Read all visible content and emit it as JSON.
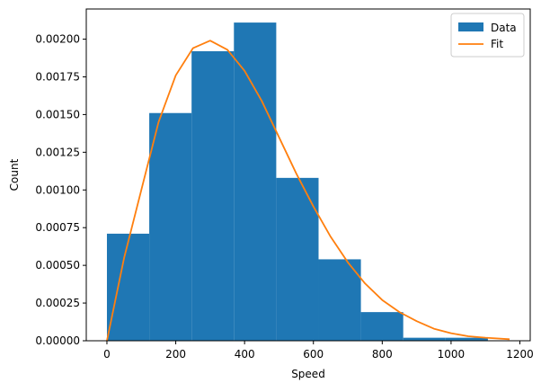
{
  "chart_data": {
    "type": "bar",
    "title": "",
    "xlabel": "Speed",
    "ylabel": "Count",
    "xlim": [
      -60,
      1230
    ],
    "ylim": [
      0,
      0.0022
    ],
    "x_ticks": [
      0,
      200,
      400,
      600,
      800,
      1000,
      1200
    ],
    "x_tick_labels": [
      "0",
      "200",
      "400",
      "600",
      "800",
      "1000",
      "1200"
    ],
    "y_ticks": [
      0,
      0.00025,
      0.0005,
      0.00075,
      0.001,
      0.00125,
      0.0015,
      0.00175,
      0.002
    ],
    "y_tick_labels": [
      "0.00000",
      "0.00025",
      "0.00050",
      "0.00075",
      "0.00100",
      "0.00125",
      "0.00150",
      "0.00175",
      "0.00200"
    ],
    "grid": false,
    "legend": {
      "placement": "top-right",
      "entries": [
        {
          "label": "Data",
          "kind": "patch",
          "color": "#1f77b4"
        },
        {
          "label": "Fit",
          "kind": "line",
          "color": "#ff7f0e"
        }
      ]
    },
    "series": [
      {
        "name": "Data",
        "type": "histogram",
        "color": "#1f77b4",
        "bins": [
          {
            "x0": 0,
            "x1": 123,
            "value": 0.00071
          },
          {
            "x0": 123,
            "x1": 246,
            "value": 0.00151
          },
          {
            "x0": 246,
            "x1": 369,
            "value": 0.00192
          },
          {
            "x0": 369,
            "x1": 492,
            "value": 0.00211
          },
          {
            "x0": 492,
            "x1": 615,
            "value": 0.00108
          },
          {
            "x0": 615,
            "x1": 738,
            "value": 0.00054
          },
          {
            "x0": 738,
            "x1": 861,
            "value": 0.00019
          },
          {
            "x0": 861,
            "x1": 984,
            "value": 2e-05
          },
          {
            "x0": 984,
            "x1": 1107,
            "value": 2e-05
          }
        ]
      },
      {
        "name": "Fit",
        "type": "line",
        "color": "#ff7f0e",
        "points": [
          [
            0,
            0
          ],
          [
            50,
            0.00055
          ],
          [
            100,
            0.001
          ],
          [
            150,
            0.00145
          ],
          [
            200,
            0.00176
          ],
          [
            250,
            0.00194
          ],
          [
            300,
            0.00199
          ],
          [
            350,
            0.00193
          ],
          [
            400,
            0.00179
          ],
          [
            450,
            0.00159
          ],
          [
            500,
            0.00135
          ],
          [
            550,
            0.00111
          ],
          [
            600,
            0.00089
          ],
          [
            650,
            0.00069
          ],
          [
            700,
            0.00052
          ],
          [
            750,
            0.00038
          ],
          [
            800,
            0.00027
          ],
          [
            850,
            0.00019
          ],
          [
            900,
            0.00013
          ],
          [
            950,
            8e-05
          ],
          [
            1000,
            5e-05
          ],
          [
            1050,
            3e-05
          ],
          [
            1100,
            2e-05
          ],
          [
            1170,
            1e-05
          ]
        ]
      }
    ]
  }
}
